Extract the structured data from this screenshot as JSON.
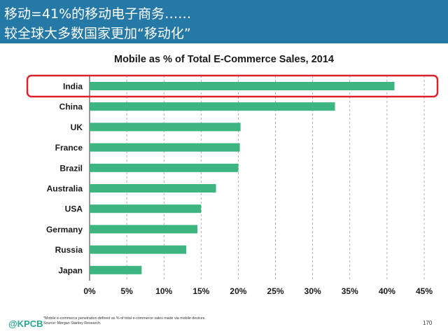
{
  "header": {
    "title_line_1": "移动=41%的移动电子商务……",
    "title_line_2": "较全球大多数国家更加“移动化”"
  },
  "chart_data": {
    "type": "bar",
    "orientation": "horizontal",
    "title": "Mobile as % of Total E-Commerce Sales, 2014",
    "categories": [
      "India",
      "China",
      "UK",
      "France",
      "Brazil",
      "Australia",
      "USA",
      "Germany",
      "Russia",
      "Japan"
    ],
    "values": [
      41,
      33,
      20.3,
      20.2,
      20,
      17,
      15,
      14.5,
      13,
      7
    ],
    "xlim": [
      0,
      45
    ],
    "xticks": [
      "0%",
      "5%",
      "10%",
      "15%",
      "20%",
      "25%",
      "30%",
      "35%",
      "40%",
      "45%"
    ],
    "grid": "vertical dashed",
    "bar_color": "#3db580",
    "highlight_category": "India",
    "highlight_color": "#d9232a"
  },
  "footer": {
    "logo": "@KPCB",
    "footnote_1": "*Mobile e-commerce penetration defined as % of total e-commerce sales made via mobile devices.",
    "footnote_2": "Source: Morgan Stanley Research.",
    "page_number": "170"
  }
}
